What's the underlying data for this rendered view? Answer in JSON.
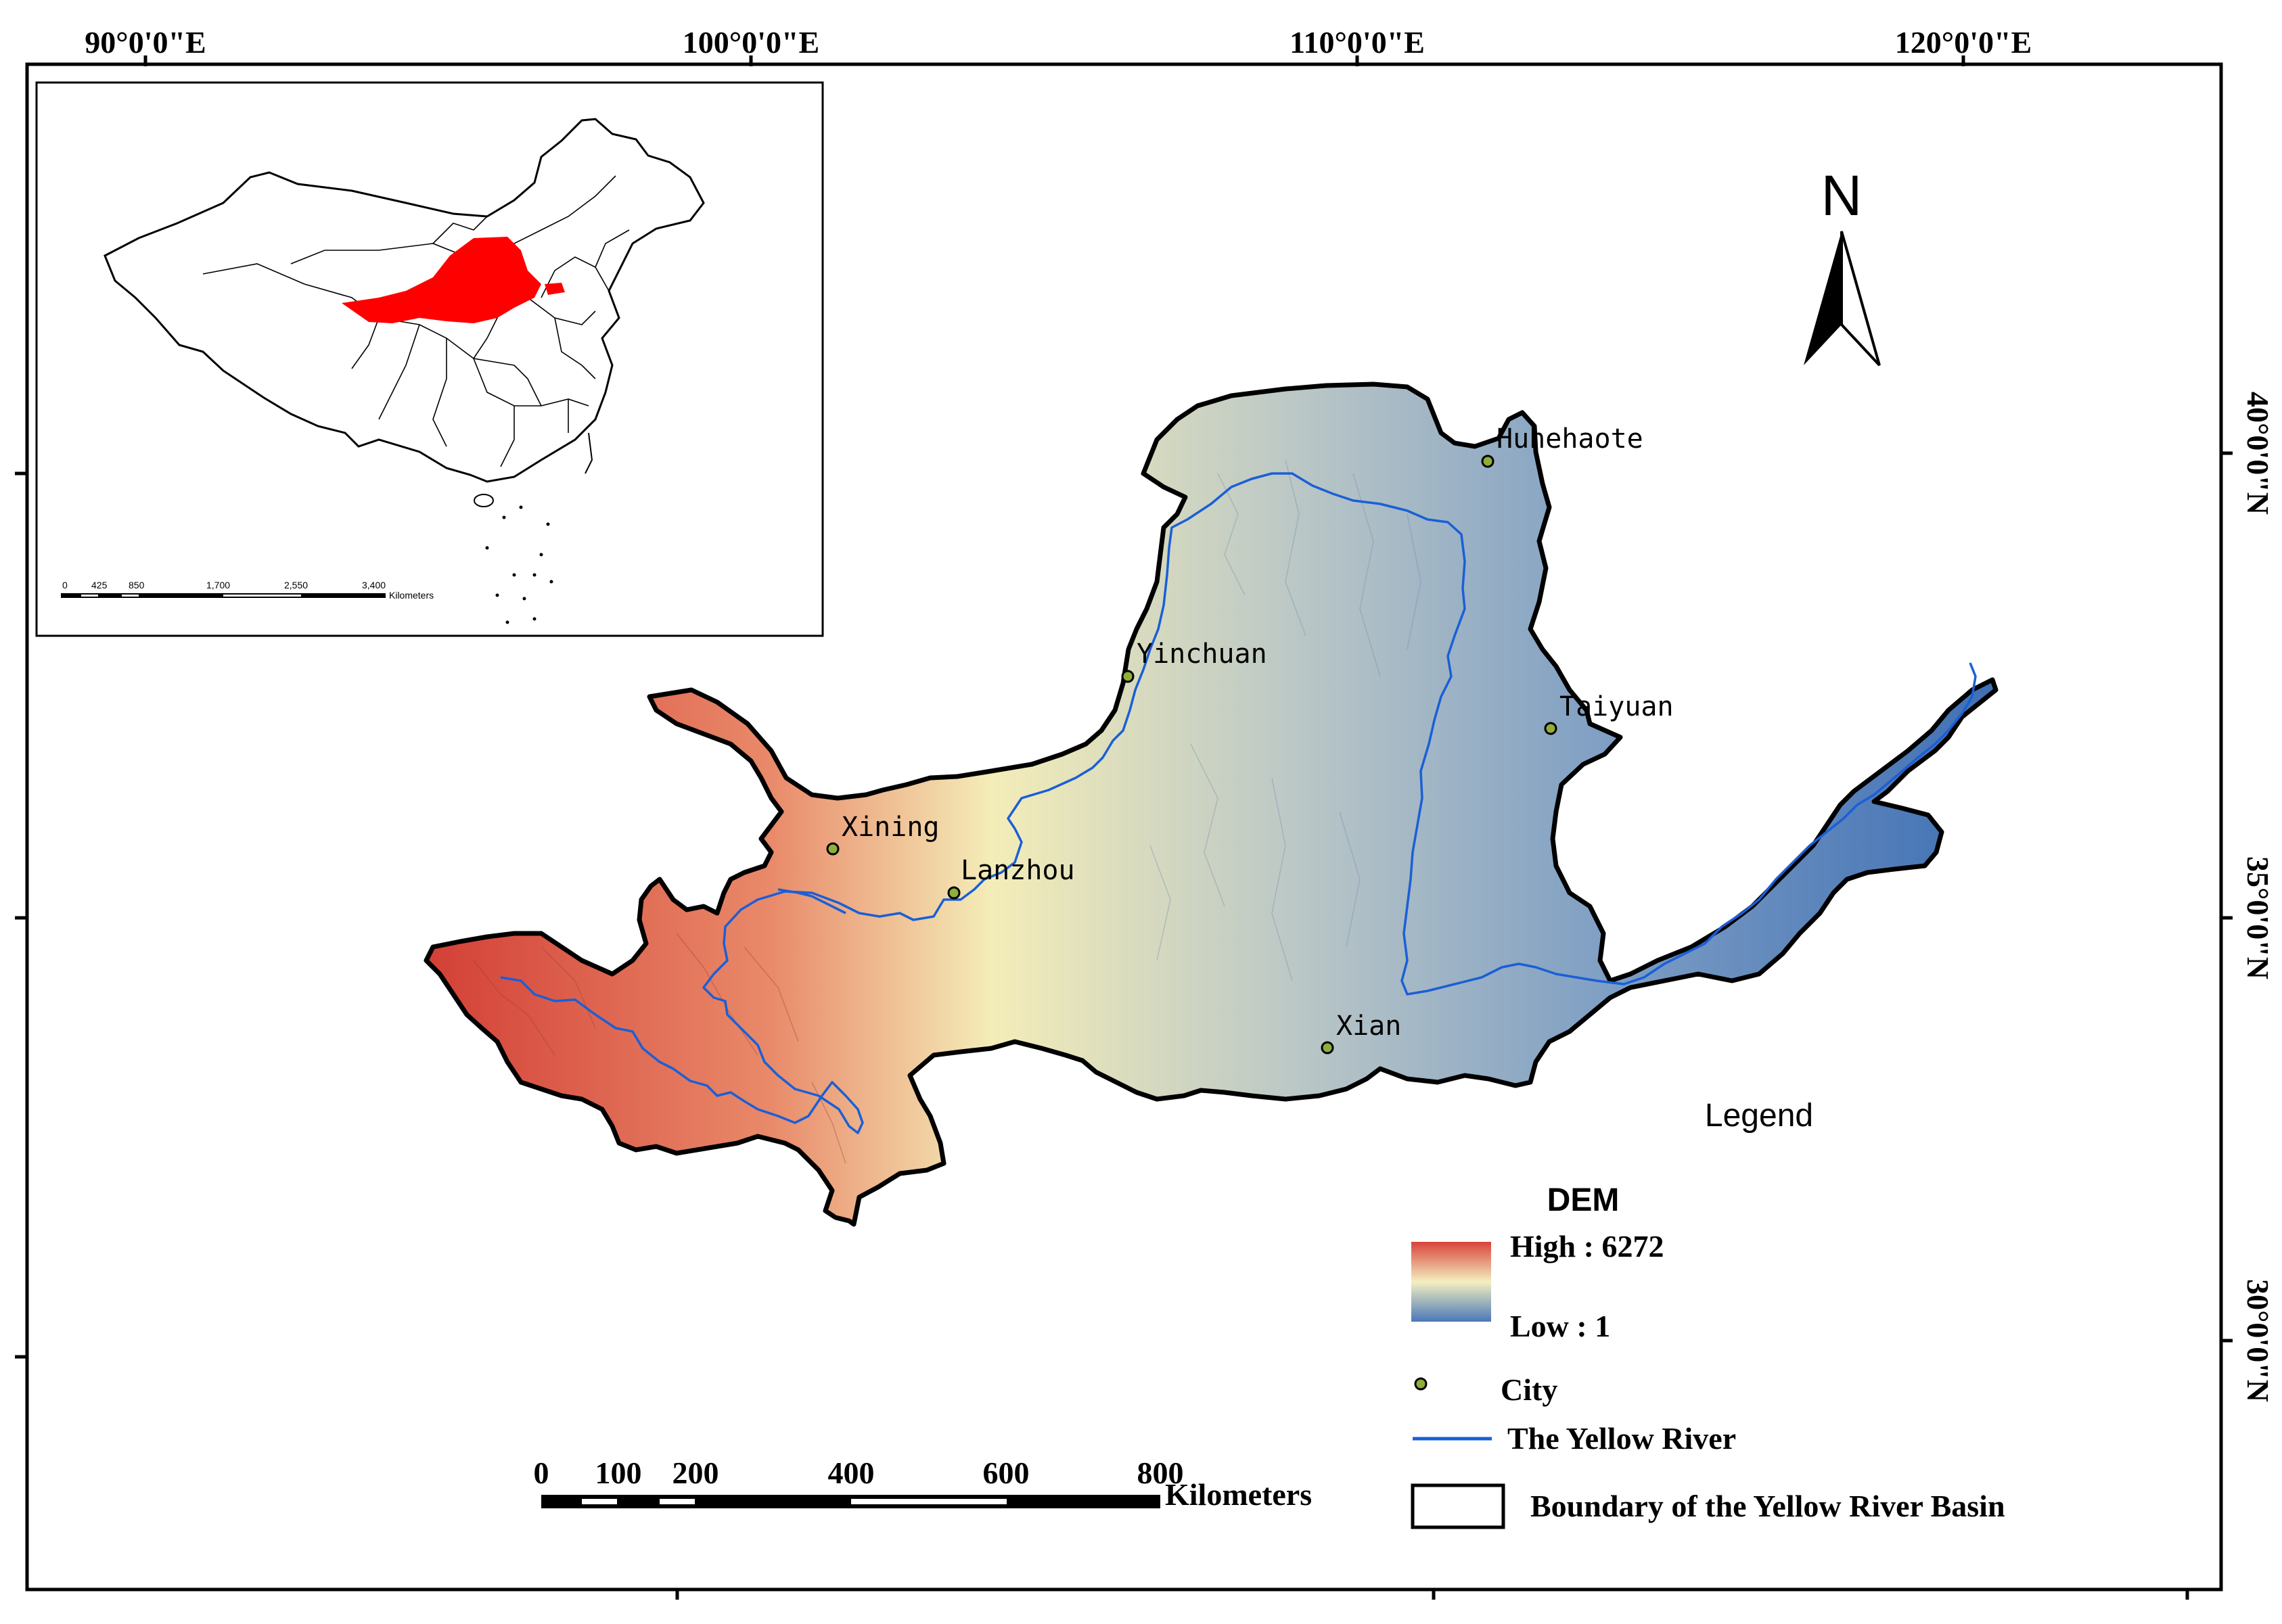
{
  "coordinates": {
    "top": [
      "90°0'0\"E",
      "100°0'0\"E",
      "110°0'0\"E",
      "120°0'0\"E"
    ],
    "right": [
      "40°0'0\"N",
      "35°0'0\"N",
      "30°0'0\"N"
    ]
  },
  "north_arrow": {
    "label": "N"
  },
  "cities": [
    {
      "name": "Huhehaote"
    },
    {
      "name": "Yinchuan"
    },
    {
      "name": "Taiyuan"
    },
    {
      "name": "Xining"
    },
    {
      "name": "Lanzhou"
    },
    {
      "name": "Xian"
    }
  ],
  "legend": {
    "title": "Legend",
    "dem_title": "DEM",
    "high_label": "High : 6272",
    "low_label": "Low : 1",
    "city_label": "City",
    "river_label": "The Yellow River",
    "boundary_label": "Boundary of the Yellow River Basin"
  },
  "scale_bar": {
    "ticks": [
      "0",
      "100",
      "200",
      "400",
      "600",
      "800"
    ],
    "unit": "Kilometers"
  },
  "inset": {
    "scale_ticks": [
      "0",
      "425",
      "850",
      "1,700",
      "2,550",
      "3,400"
    ],
    "scale_unit": "Kilometers"
  },
  "colors": {
    "dem_high": "#d9433a",
    "dem_mid": "#f3edb8",
    "dem_low": "#4a78b8",
    "river": "#1a5fd6",
    "city_marker": "#8fae3a",
    "highlight": "#ff0000"
  }
}
